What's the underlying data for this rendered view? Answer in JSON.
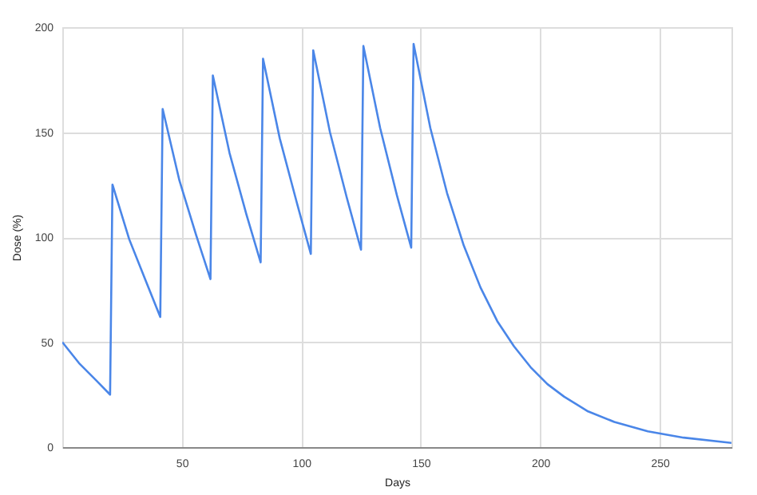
{
  "chart_data": {
    "type": "line",
    "xlabel": "Days",
    "ylabel": "Dose (%)",
    "series": [
      {
        "color": "#4a86e8",
        "x": [
          0,
          7,
          14,
          20,
          21,
          28,
          35,
          41,
          42,
          49,
          56,
          62,
          63,
          70,
          77,
          83,
          84,
          91,
          98,
          104,
          105,
          112,
          119,
          125,
          126,
          133,
          140,
          146,
          147,
          154,
          161,
          168,
          175,
          182,
          189,
          196,
          203,
          210,
          220,
          231,
          245,
          260,
          280
        ],
        "values": [
          50,
          40,
          32,
          25,
          125,
          99,
          79,
          62,
          161,
          127,
          101,
          80,
          177,
          140,
          111,
          88,
          185,
          147,
          117,
          92,
          189,
          150,
          119,
          94,
          191,
          152,
          120,
          95,
          192,
          152,
          121,
          96,
          76,
          60,
          48,
          38,
          30,
          24,
          17,
          12,
          7.5,
          4.5,
          2
        ]
      }
    ],
    "xlim": [
      0,
      280
    ],
    "xticks": [
      50,
      100,
      150,
      200,
      250
    ],
    "ylim": [
      0,
      200
    ],
    "yticks": [
      0,
      50,
      100,
      150,
      200
    ],
    "grid": true,
    "marker": "none",
    "line_style": "solid"
  }
}
